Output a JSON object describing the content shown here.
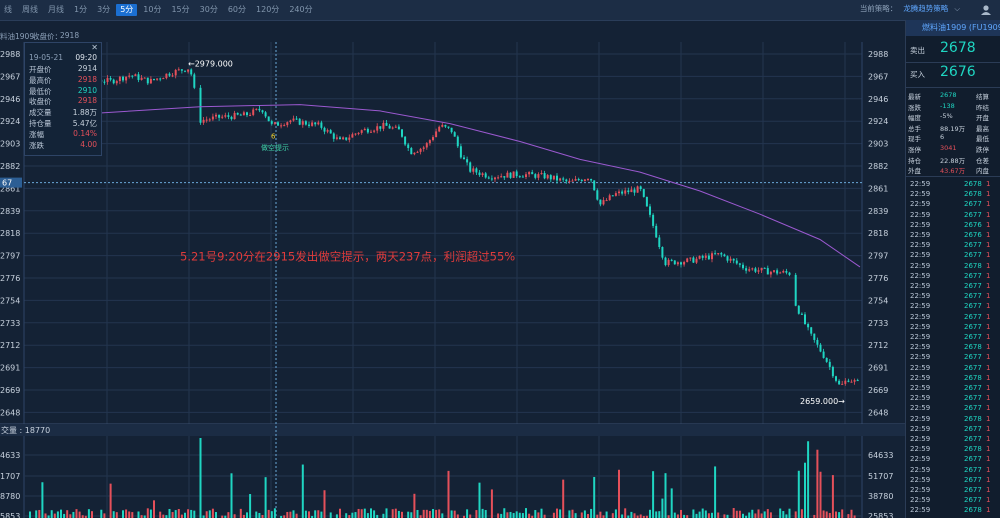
{
  "toolbar": {
    "tabs": [
      "线",
      "周线",
      "月线",
      "1分",
      "3分",
      "5分",
      "10分",
      "15分",
      "30分",
      "60分",
      "120分",
      "240分"
    ],
    "active_tab": "5分",
    "strategy_label": "当前策略：",
    "strategy_value": "龙腾趋势策略"
  },
  "chart_header": {
    "contract": "料油1909",
    "close_label": "收盘价：",
    "close_value": "2918"
  },
  "price_axis": {
    "right_labels": [
      "2988",
      "2967",
      "2946",
      "2924",
      "2903",
      "2882",
      "2861",
      "2839",
      "2818",
      "2797",
      "2776",
      "2754",
      "2733",
      "2712",
      "2691",
      "2669",
      "2648"
    ],
    "left_labels": [
      "2988",
      "2967",
      "2946",
      "2924",
      "2903",
      "2882",
      "2861",
      "2839",
      "2818",
      "2797",
      "2776",
      "2754",
      "2733",
      "2712",
      "2691",
      "2669",
      "2648"
    ],
    "crosshair_label": "67"
  },
  "volume_axis": {
    "title": "交量 : 18770",
    "right_labels": [
      "64633",
      "51707",
      "38780",
      "25853"
    ],
    "left_labels": [
      "4633",
      "1707",
      "8780",
      "5853"
    ]
  },
  "info_box": {
    "date": "19-05-21",
    "time": "09:20",
    "rows": [
      {
        "label": "开盘价",
        "value": "2914",
        "color": "#c7d1dc"
      },
      {
        "label": "最高价",
        "value": "2918",
        "color": "#e5505a"
      },
      {
        "label": "最低价",
        "value": "2910",
        "color": "#1fd6c2"
      },
      {
        "label": "收盘价",
        "value": "2918",
        "color": "#e5505a"
      },
      {
        "label": "成交量",
        "value": "1.88万",
        "color": "#c7d1dc"
      },
      {
        "label": "持仓量",
        "value": "5.47亿",
        "color": "#c7d1dc"
      },
      {
        "label": "涨幅",
        "value": "0.14%",
        "color": "#e5505a"
      },
      {
        "label": "涨跌",
        "value": "4.00",
        "color": "#e5505a"
      }
    ]
  },
  "annotations": {
    "high_label": "←2979.000",
    "low_label": "2659.000→",
    "signal_label": "做空提示",
    "signal_value": "6",
    "main_text": "5.21号9:20分在2915发出做空提示，两天237点，利润超过55%"
  },
  "quote_panel": {
    "title": "燃料油1909 (FU1909)",
    "sell_label": "卖出",
    "sell_price": "2678",
    "buy_label": "买入",
    "buy_price": "2676",
    "stats": [
      {
        "l1": "最新",
        "v1": "2678",
        "c1": "#1fd6c2",
        "l2": "结算",
        "v2": "",
        "c2": "#c7d1dc"
      },
      {
        "l1": "涨跌",
        "v1": "-138",
        "c1": "#1fd6c2",
        "l2": "昨结",
        "v2": "",
        "c2": "#c7d1dc"
      },
      {
        "l1": "幅度",
        "v1": "-5%",
        "c1": "#c7d1dc",
        "l2": "开盘",
        "v2": "",
        "c2": "#c7d1dc"
      },
      {
        "l1": "总手",
        "v1": "88.19万",
        "c1": "#c7d1dc",
        "l2": "最高",
        "v2": "",
        "c2": "#c7d1dc"
      },
      {
        "l1": "现手",
        "v1": "6",
        "c1": "#c7d1dc",
        "l2": "最低",
        "v2": "",
        "c2": "#c7d1dc"
      },
      {
        "l1": "涨停",
        "v1": "3041",
        "c1": "#e5505a",
        "l2": "跌停",
        "v2": "",
        "c2": "#c7d1dc"
      },
      {
        "l1": "持仓",
        "v1": "22.88万",
        "c1": "#c7d1dc",
        "l2": "仓差",
        "v2": "",
        "c2": "#c7d1dc"
      },
      {
        "l1": "外盘",
        "v1": "43.67万",
        "c1": "#e5505a",
        "l2": "内盘",
        "v2": "",
        "c2": "#c7d1dc"
      }
    ],
    "ticks": [
      {
        "t": "22:59",
        "p": "2678",
        "v": "1"
      },
      {
        "t": "22:59",
        "p": "2678",
        "v": "1"
      },
      {
        "t": "22:59",
        "p": "2677",
        "v": "1"
      },
      {
        "t": "22:59",
        "p": "2677",
        "v": "1"
      },
      {
        "t": "22:59",
        "p": "2676",
        "v": "1"
      },
      {
        "t": "22:59",
        "p": "2676",
        "v": "1"
      },
      {
        "t": "22:59",
        "p": "2677",
        "v": "1"
      },
      {
        "t": "22:59",
        "p": "2677",
        "v": "1"
      },
      {
        "t": "22:59",
        "p": "2678",
        "v": "1"
      },
      {
        "t": "22:59",
        "p": "2677",
        "v": "1"
      },
      {
        "t": "22:59",
        "p": "2677",
        "v": "1"
      },
      {
        "t": "22:59",
        "p": "2677",
        "v": "1"
      },
      {
        "t": "22:59",
        "p": "2677",
        "v": "1"
      },
      {
        "t": "22:59",
        "p": "2677",
        "v": "1"
      },
      {
        "t": "22:59",
        "p": "2677",
        "v": "1"
      },
      {
        "t": "22:59",
        "p": "2677",
        "v": "1"
      },
      {
        "t": "22:59",
        "p": "2678",
        "v": "1"
      },
      {
        "t": "22:59",
        "p": "2677",
        "v": "1"
      },
      {
        "t": "22:59",
        "p": "2677",
        "v": "1"
      },
      {
        "t": "22:59",
        "p": "2678",
        "v": "1"
      },
      {
        "t": "22:59",
        "p": "2677",
        "v": "1"
      },
      {
        "t": "22:59",
        "p": "2677",
        "v": "1"
      },
      {
        "t": "22:59",
        "p": "2677",
        "v": "1"
      },
      {
        "t": "22:59",
        "p": "2678",
        "v": "1"
      },
      {
        "t": "22:59",
        "p": "2677",
        "v": "1"
      },
      {
        "t": "22:59",
        "p": "2677",
        "v": "1"
      },
      {
        "t": "22:59",
        "p": "2678",
        "v": "1"
      },
      {
        "t": "22:59",
        "p": "2677",
        "v": "1"
      },
      {
        "t": "22:59",
        "p": "2677",
        "v": "1"
      },
      {
        "t": "22:59",
        "p": "2677",
        "v": "1"
      },
      {
        "t": "22:59",
        "p": "2677",
        "v": "1"
      },
      {
        "t": "22:59",
        "p": "2677",
        "v": "1"
      },
      {
        "t": "22:59",
        "p": "2678",
        "v": "1"
      },
      {
        "t": "22:59",
        "p": "2677",
        "v": "1"
      }
    ]
  },
  "colors": {
    "up": "#e5505a",
    "down": "#1fd6c2",
    "ma": "#9b59d0",
    "annotation": "#e03b3b"
  }
}
